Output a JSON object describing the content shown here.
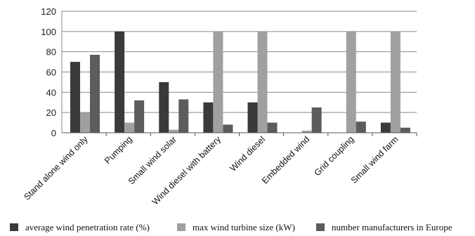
{
  "chart_data": {
    "type": "bar",
    "categories": [
      "Stand alone wind only",
      "Pumping",
      "Small wind solar",
      "Wind diesel with battery",
      "Wind diesel",
      "Embedded wind",
      "Grid coupling",
      "Small wind farm"
    ],
    "series": [
      {
        "name": "average wind penetration rate (%)",
        "color": "#3a3a3a",
        "values": [
          70,
          100,
          50,
          30,
          30,
          0,
          0,
          10
        ]
      },
      {
        "name": "max wind turbine size (kW)",
        "color": "#a0a0a0",
        "values": [
          20,
          10,
          3,
          100,
          100,
          2,
          100,
          100
        ]
      },
      {
        "name": "number manufacturers  in Europe",
        "color": "#5c5c5c",
        "values": [
          77,
          32,
          33,
          8,
          10,
          25,
          11,
          5
        ]
      }
    ],
    "ylim": [
      0,
      120
    ],
    "yticks": [
      0,
      20,
      40,
      60,
      80,
      100,
      120
    ],
    "grid": true,
    "legend_position": "bottom",
    "title": "",
    "xlabel": "",
    "ylabel": ""
  }
}
